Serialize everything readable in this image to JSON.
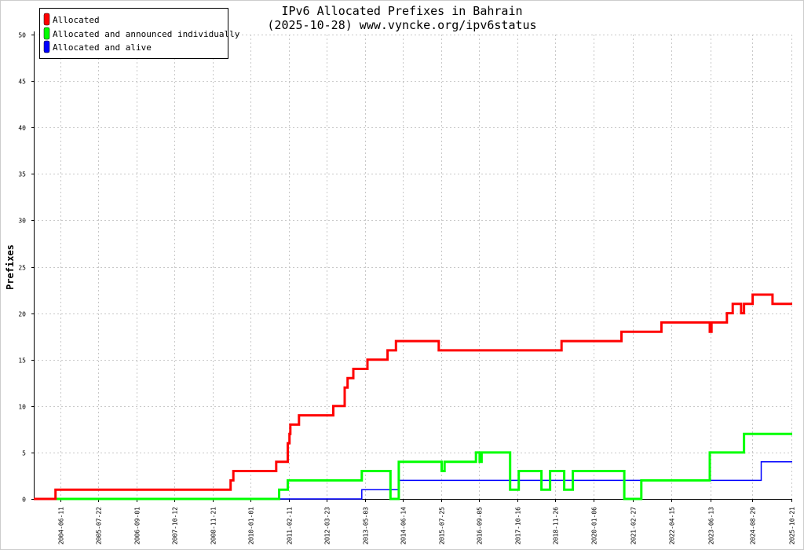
{
  "chart_data": {
    "type": "line",
    "title": "IPv6 Allocated Prefixes in Bahrain",
    "subtitle": "(2025-10-28) www.vyncke.org/ipv6status",
    "ylabel": "Prefixes",
    "xlabel": "",
    "ylim": [
      0,
      50
    ],
    "xlim": [
      "2003-09-01",
      "2025-10-28"
    ],
    "y_ticks": [
      0,
      5,
      10,
      15,
      20,
      25,
      30,
      35,
      40,
      45,
      50
    ],
    "x_ticks": [
      "2004-06-11",
      "2005-07-22",
      "2006-09-01",
      "2007-10-12",
      "2008-11-21",
      "2010-01-01",
      "2011-02-11",
      "2012-03-23",
      "2013-05-03",
      "2014-06-14",
      "2015-07-25",
      "2016-09-05",
      "2017-10-16",
      "2018-11-26",
      "2020-01-06",
      "2021-02-27",
      "2022-04-15",
      "2023-06-13",
      "2024-08-29",
      "2025-10-21"
    ],
    "grid": true,
    "legend_position": "top-left",
    "series": [
      {
        "name": "Allocated",
        "color": "#ff0000",
        "step": true,
        "points": [
          [
            "2003-09-01",
            0
          ],
          [
            "2004-04-20",
            1
          ],
          [
            "2009-06-01",
            2
          ],
          [
            "2009-07-01",
            3
          ],
          [
            "2010-10-01",
            4
          ],
          [
            "2011-02-01",
            6
          ],
          [
            "2011-02-20",
            7
          ],
          [
            "2011-03-01",
            8
          ],
          [
            "2011-06-01",
            9
          ],
          [
            "2012-06-01",
            10
          ],
          [
            "2012-10-01",
            12
          ],
          [
            "2012-11-01",
            13
          ],
          [
            "2013-01-01",
            14
          ],
          [
            "2013-06-01",
            15
          ],
          [
            "2014-01-01",
            16
          ],
          [
            "2014-04-01",
            17
          ],
          [
            "2015-07-01",
            16
          ],
          [
            "2019-02-01",
            17
          ],
          [
            "2020-11-01",
            18
          ],
          [
            "2022-01-01",
            19
          ],
          [
            "2023-06-01",
            18
          ],
          [
            "2023-06-20",
            19
          ],
          [
            "2023-12-01",
            20
          ],
          [
            "2024-02-01",
            21
          ],
          [
            "2024-05-01",
            20
          ],
          [
            "2024-06-01",
            21
          ],
          [
            "2024-09-01",
            22
          ],
          [
            "2025-04-01",
            21
          ],
          [
            "2025-10-28",
            21
          ]
        ]
      },
      {
        "name": "Allocated and announced individually",
        "color": "#00ff00",
        "step": true,
        "points": [
          [
            "2003-09-01",
            0
          ],
          [
            "2010-11-01",
            1
          ],
          [
            "2011-02-01",
            2
          ],
          [
            "2013-04-01",
            3
          ],
          [
            "2014-02-01",
            0
          ],
          [
            "2014-05-01",
            4
          ],
          [
            "2015-08-01",
            3
          ],
          [
            "2015-09-01",
            4
          ],
          [
            "2016-08-01",
            5
          ],
          [
            "2016-09-10",
            4
          ],
          [
            "2016-10-01",
            5
          ],
          [
            "2017-08-01",
            1
          ],
          [
            "2017-11-01",
            3
          ],
          [
            "2018-07-01",
            1
          ],
          [
            "2018-10-01",
            3
          ],
          [
            "2019-03-01",
            1
          ],
          [
            "2019-06-01",
            3
          ],
          [
            "2020-12-01",
            0
          ],
          [
            "2021-06-01",
            2
          ],
          [
            "2023-06-01",
            5
          ],
          [
            "2024-06-01",
            7
          ],
          [
            "2025-10-28",
            7
          ]
        ]
      },
      {
        "name": "Allocated and alive",
        "color": "#0000ff",
        "step": true,
        "points": [
          [
            "2003-09-01",
            0
          ],
          [
            "2013-04-01",
            1
          ],
          [
            "2014-05-01",
            2
          ],
          [
            "2024-12-01",
            4
          ],
          [
            "2025-10-28",
            4
          ]
        ]
      }
    ]
  }
}
